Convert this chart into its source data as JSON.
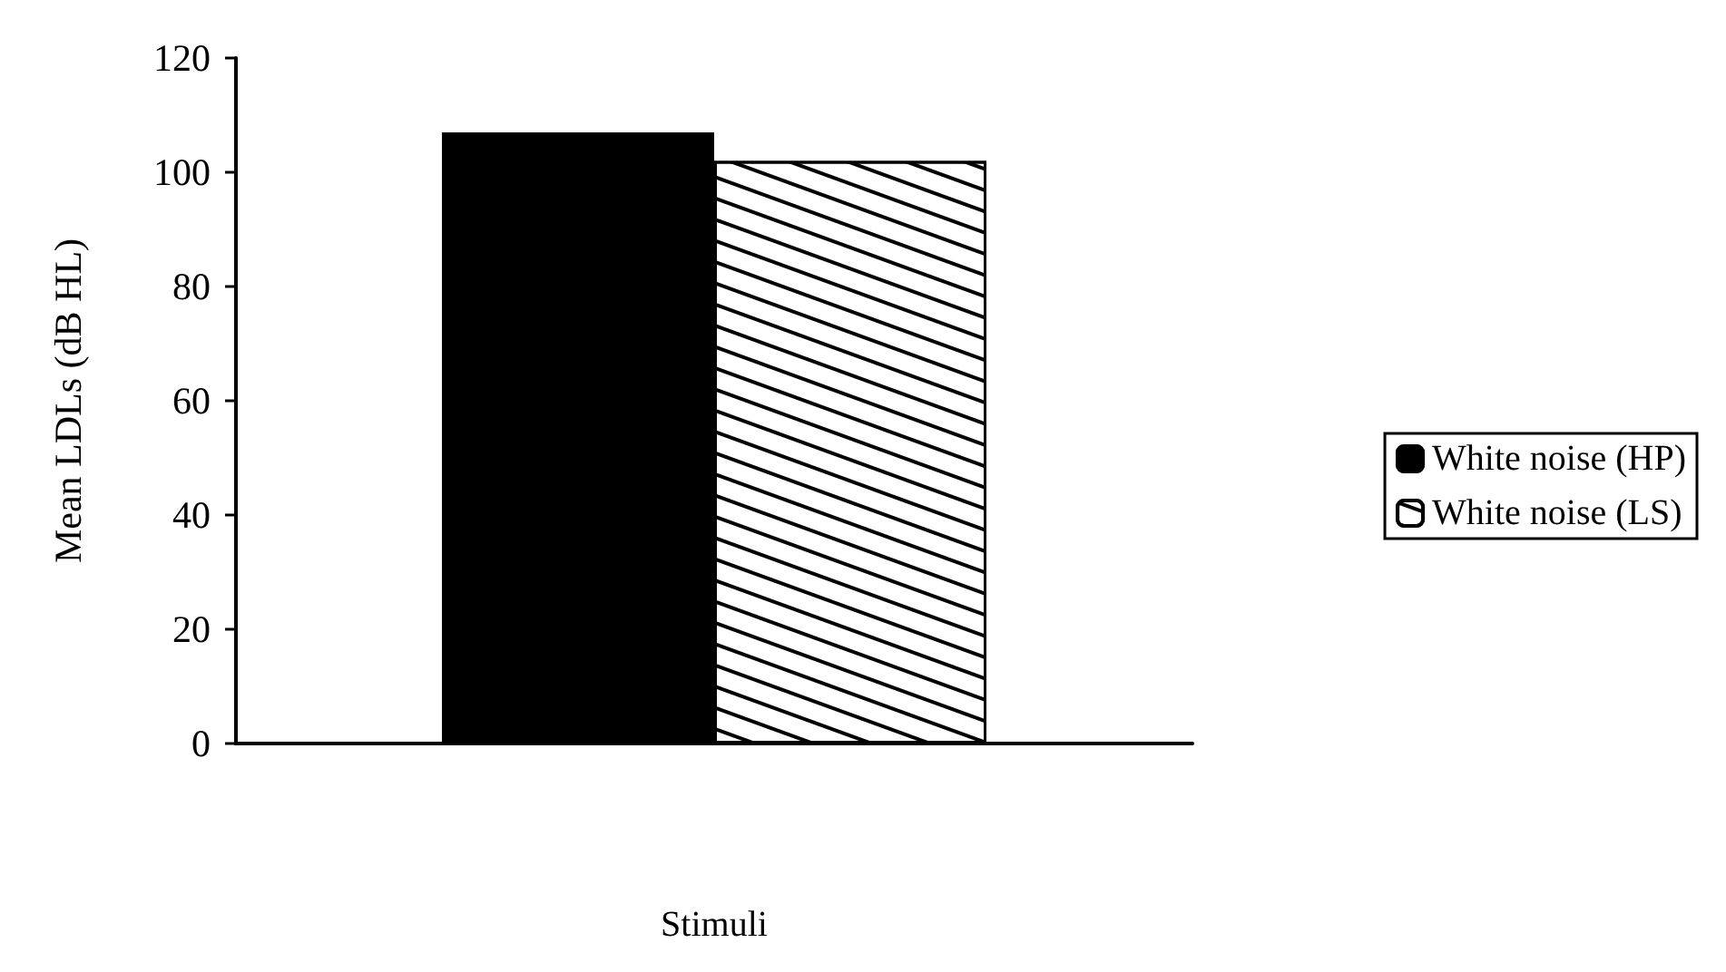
{
  "chart_data": {
    "type": "bar",
    "xlabel": "Stimuli",
    "ylabel": "Mean LDLs (dB HL)",
    "categories": [
      null
    ],
    "series": [
      {
        "name": "White noise (HP)",
        "color": "#000000",
        "values": [
          107
        ]
      },
      {
        "name": "White noise (LS)",
        "color": "#ffffff",
        "values": [
          102
        ]
      }
    ],
    "ylim": [
      0,
      120
    ],
    "yticks": [
      0,
      20,
      40,
      60,
      80,
      100,
      120
    ],
    "grid": false,
    "legend": "right"
  }
}
